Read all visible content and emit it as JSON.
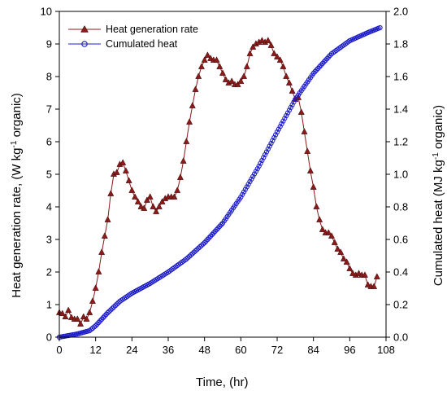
{
  "chart_data": {
    "type": "line",
    "xlabel": "Time, (hr)",
    "ylabel_left": {
      "main": "Heat generation rate, (W kg",
      "sup": "-1",
      "tail": " organic)"
    },
    "ylabel_right": {
      "main": "Cumulated heat (MJ kg",
      "sup": "-1",
      "tail": " organic)"
    },
    "xlim": [
      0,
      108
    ],
    "ylim_left": [
      0,
      10
    ],
    "ylim_right": [
      0,
      2.0
    ],
    "x_ticks": [
      "0",
      "12",
      "24",
      "36",
      "48",
      "60",
      "72",
      "84",
      "96",
      "108"
    ],
    "y_left_ticks": [
      "0",
      "1",
      "2",
      "3",
      "4",
      "5",
      "6",
      "7",
      "8",
      "9",
      "10"
    ],
    "y_right_ticks": [
      "0.0",
      "0.2",
      "0.4",
      "0.6",
      "0.8",
      "1.0",
      "1.2",
      "1.4",
      "1.6",
      "1.8",
      "2.0"
    ],
    "legend_position": "top-left",
    "series": [
      {
        "name": "Heat generation rate",
        "axis": "left",
        "color": "#8b1a1a",
        "marker": "triangle",
        "points": [
          [
            0,
            0.75
          ],
          [
            1,
            0.72
          ],
          [
            2,
            0.62
          ],
          [
            3,
            0.82
          ],
          [
            4,
            0.6
          ],
          [
            5,
            0.55
          ],
          [
            6,
            0.55
          ],
          [
            7,
            0.4
          ],
          [
            8,
            0.62
          ],
          [
            9,
            0.55
          ],
          [
            10,
            0.75
          ],
          [
            11,
            1.1
          ],
          [
            12,
            1.5
          ],
          [
            13,
            2.0
          ],
          [
            14,
            2.6
          ],
          [
            15,
            3.1
          ],
          [
            16,
            3.6
          ],
          [
            17,
            4.4
          ],
          [
            18,
            5.0
          ],
          [
            19,
            5.05
          ],
          [
            20,
            5.3
          ],
          [
            21,
            5.35
          ],
          [
            22,
            5.1
          ],
          [
            23,
            4.8
          ],
          [
            24,
            4.5
          ],
          [
            25,
            4.3
          ],
          [
            26,
            4.15
          ],
          [
            27,
            4.0
          ],
          [
            28,
            3.95
          ],
          [
            29,
            4.2
          ],
          [
            30,
            4.3
          ],
          [
            31,
            4.0
          ],
          [
            32,
            3.85
          ],
          [
            33,
            4.0
          ],
          [
            34,
            4.15
          ],
          [
            35,
            4.25
          ],
          [
            36,
            4.3
          ],
          [
            37,
            4.3
          ],
          [
            38,
            4.3
          ],
          [
            39,
            4.5
          ],
          [
            40,
            4.9
          ],
          [
            41,
            5.4
          ],
          [
            42,
            6.0
          ],
          [
            43,
            6.6
          ],
          [
            44,
            7.1
          ],
          [
            45,
            7.6
          ],
          [
            46,
            8.0
          ],
          [
            47,
            8.3
          ],
          [
            48,
            8.5
          ],
          [
            49,
            8.65
          ],
          [
            50,
            8.55
          ],
          [
            51,
            8.5
          ],
          [
            52,
            8.5
          ],
          [
            53,
            8.3
          ],
          [
            54,
            8.1
          ],
          [
            55,
            7.9
          ],
          [
            56,
            7.8
          ],
          [
            57,
            7.85
          ],
          [
            58,
            7.75
          ],
          [
            59,
            7.75
          ],
          [
            60,
            7.85
          ],
          [
            61,
            8.0
          ],
          [
            62,
            8.3
          ],
          [
            63,
            8.7
          ],
          [
            64,
            8.9
          ],
          [
            65,
            9.0
          ],
          [
            66,
            9.05
          ],
          [
            67,
            9.1
          ],
          [
            68,
            9.05
          ],
          [
            69,
            9.1
          ],
          [
            70,
            8.95
          ],
          [
            71,
            8.7
          ],
          [
            72,
            8.6
          ],
          [
            73,
            8.5
          ],
          [
            74,
            8.3
          ],
          [
            75,
            8.0
          ],
          [
            76,
            7.8
          ],
          [
            77,
            7.55
          ],
          [
            78,
            7.3
          ],
          [
            79,
            7.35
          ],
          [
            80,
            6.9
          ],
          [
            81,
            6.3
          ],
          [
            82,
            5.7
          ],
          [
            83,
            5.1
          ],
          [
            84,
            4.6
          ],
          [
            85,
            4.0
          ],
          [
            86,
            3.6
          ],
          [
            87,
            3.3
          ],
          [
            88,
            3.2
          ],
          [
            89,
            3.2
          ],
          [
            90,
            3.1
          ],
          [
            91,
            2.9
          ],
          [
            92,
            2.7
          ],
          [
            93,
            2.6
          ],
          [
            94,
            2.4
          ],
          [
            95,
            2.3
          ],
          [
            96,
            2.1
          ],
          [
            97,
            1.95
          ],
          [
            98,
            1.9
          ],
          [
            99,
            1.95
          ],
          [
            100,
            1.9
          ],
          [
            101,
            1.9
          ],
          [
            102,
            1.6
          ],
          [
            103,
            1.55
          ],
          [
            104,
            1.55
          ],
          [
            105,
            1.85
          ]
        ]
      },
      {
        "name": "Cumulated heat",
        "axis": "right",
        "color": "#1c1cc8",
        "marker": "circle",
        "points": [
          [
            0,
            0.0
          ],
          [
            6,
            0.02
          ],
          [
            10,
            0.04
          ],
          [
            12,
            0.07
          ],
          [
            14,
            0.11
          ],
          [
            16,
            0.15
          ],
          [
            20,
            0.22
          ],
          [
            24,
            0.27
          ],
          [
            30,
            0.33
          ],
          [
            36,
            0.4
          ],
          [
            42,
            0.48
          ],
          [
            48,
            0.58
          ],
          [
            54,
            0.7
          ],
          [
            60,
            0.86
          ],
          [
            66,
            1.05
          ],
          [
            72,
            1.26
          ],
          [
            78,
            1.46
          ],
          [
            84,
            1.62
          ],
          [
            90,
            1.74
          ],
          [
            96,
            1.82
          ],
          [
            102,
            1.87
          ],
          [
            106,
            1.9
          ]
        ]
      }
    ]
  }
}
